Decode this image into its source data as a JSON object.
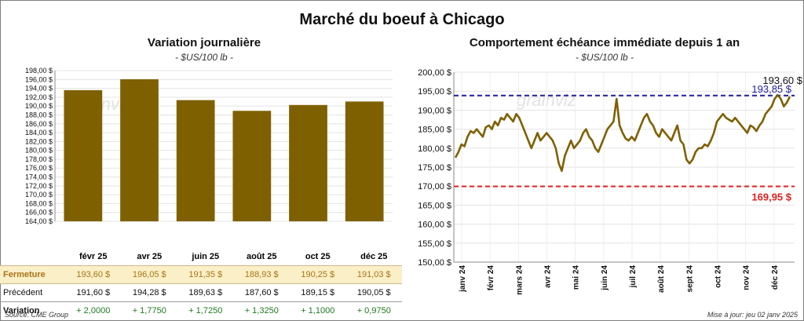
{
  "title": "Marché du boeuf à Chicago",
  "watermark": "grainviz",
  "left_panel": {
    "title": "Variation journalière",
    "unit": "- $US/100 lb -"
  },
  "right_panel": {
    "title": "Comportement échéance immédiate depuis 1 an",
    "unit": "- $US/100 lb -"
  },
  "table": {
    "rows": [
      {
        "label": "Fermeture",
        "values": [
          "193,60 $",
          "196,05 $",
          "191,35 $",
          "188,93 $",
          "190,25 $",
          "191,03 $"
        ]
      },
      {
        "label": "Précédent",
        "values": [
          "191,60 $",
          "194,28 $",
          "189,63 $",
          "187,60 $",
          "189,15 $",
          "190,05 $"
        ]
      },
      {
        "label": "Variation",
        "values": [
          "+ 2,0000",
          "+ 1,7750",
          "+ 1,7250",
          "+ 1,3250",
          "+ 1,1000",
          "+ 0,9750"
        ]
      }
    ]
  },
  "colors": {
    "bar": "#7f6000",
    "line": "#7f6000",
    "upper_ref": "#1f1fa0",
    "lower_ref": "#e02020",
    "close_row_bg": "#fbefc7"
  },
  "chart_data": [
    {
      "type": "bar",
      "categories": [
        "févr 25",
        "avr 25",
        "juin 25",
        "août 25",
        "oct 25",
        "déc 25"
      ],
      "values": [
        193.6,
        196.05,
        191.35,
        188.93,
        190.25,
        191.03
      ],
      "ylim": [
        164,
        198
      ],
      "yticks": [
        "164,00 $",
        "166,00 $",
        "168,00 $",
        "170,00 $",
        "172,00 $",
        "174,00 $",
        "176,00 $",
        "178,00 $",
        "180,00 $",
        "182,00 $",
        "184,00 $",
        "186,00 $",
        "188,00 $",
        "190,00 $",
        "192,00 $",
        "194,00 $",
        "196,00 $",
        "198,00 $"
      ],
      "grid": true
    },
    {
      "type": "line",
      "ylim": [
        150,
        200
      ],
      "yticks": [
        "150,00 $",
        "155,00 $",
        "160,00 $",
        "165,00 $",
        "170,00 $",
        "175,00 $",
        "180,00 $",
        "185,00 $",
        "190,00 $",
        "195,00 $",
        "200,00 $"
      ],
      "xticks": [
        "janv 24",
        "févr 24",
        "mars 24",
        "avr 24",
        "mai 24",
        "juin 24",
        "juil 24",
        "août 24",
        "sept 24",
        "oct 24",
        "nov 24",
        "déc 24"
      ],
      "series": [
        {
          "values": [
            177.5,
            179,
            181,
            180.5,
            183,
            184.5,
            184,
            185,
            184,
            183,
            185.5,
            186,
            185,
            187,
            186,
            188,
            187.5,
            189,
            188,
            187,
            189,
            188,
            186,
            184,
            182,
            180,
            182,
            184,
            182,
            183,
            184,
            183,
            182,
            180,
            176,
            174,
            178,
            180,
            182,
            180,
            181,
            182,
            184,
            185,
            183,
            182,
            180,
            179,
            181,
            183,
            185,
            186,
            187,
            193,
            186,
            184,
            182.5,
            182,
            183,
            182,
            184,
            186,
            188,
            189,
            187,
            186,
            184,
            183,
            185,
            184,
            183,
            182,
            184,
            186,
            182,
            181,
            177,
            176,
            177,
            179,
            180,
            180,
            181,
            180.5,
            182,
            184,
            187,
            188,
            189,
            188,
            187.5,
            187,
            188,
            187,
            186,
            185,
            184,
            186,
            185.5,
            184.5,
            186,
            187,
            189,
            190,
            191,
            193,
            194,
            193,
            191,
            192,
            193.6
          ]
        }
      ],
      "reference_lines": [
        {
          "value": 193.85,
          "label": "193,85 $",
          "color": "#1f1fa0"
        },
        {
          "value": 169.95,
          "label": "169,95 $",
          "color": "#e02020"
        }
      ],
      "last_value_label": "193,60 $",
      "grid": true
    }
  ],
  "footer": {
    "source": "Source: CME Group",
    "updated": "Mise à jour: jeu 02 janv 2025"
  }
}
